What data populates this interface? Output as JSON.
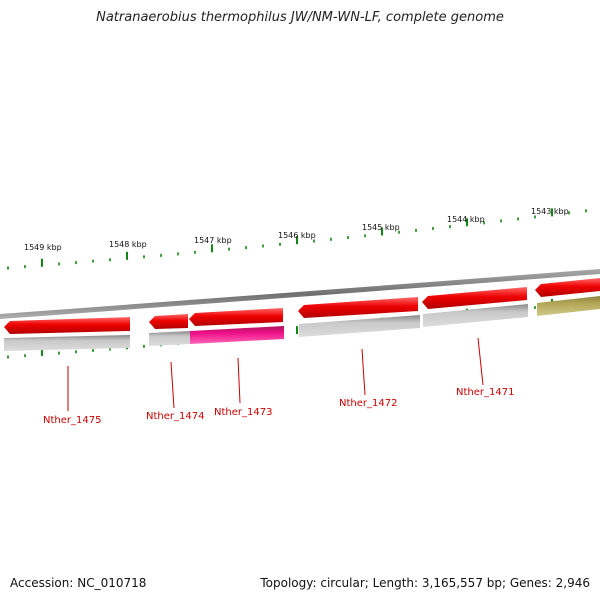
{
  "header": {
    "title": "Natranaerobius thermophilus JW/NM-WN-LF, complete genome"
  },
  "footer": {
    "accession": "Accession: NC_010718",
    "summary": "Topology: circular; Length: 3,165,557 bp; Genes: 2,946"
  },
  "ruler": {
    "labels": [
      "1549 kbp",
      "1548 kbp",
      "1547 kbp",
      "1546 kbp",
      "1545 kbp",
      "1544 kbp",
      "1543 kbp"
    ]
  },
  "genes": [
    {
      "name": "Nther_1475"
    },
    {
      "name": "Nther_1474"
    },
    {
      "name": "Nther_1473"
    },
    {
      "name": "Nther_1472"
    },
    {
      "name": "Nther_1471"
    }
  ],
  "colors": {
    "forward_cds": "#ee0000",
    "neutral_feature": "#b8b8b8",
    "highlight_feature": "#ee1188",
    "other_feature": "#b5a85a",
    "backbone": "#888888",
    "tick": "#118811",
    "gene_label": "#cc0000"
  }
}
